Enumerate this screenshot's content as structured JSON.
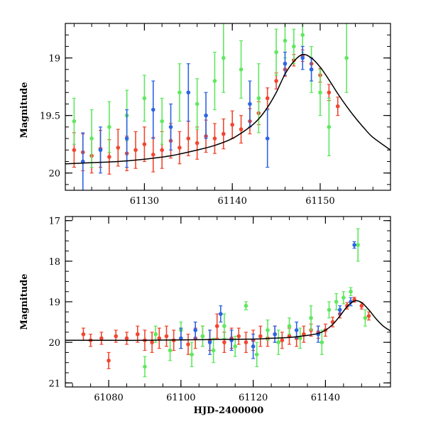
{
  "chart_data": [
    {
      "type": "scatter",
      "panel": "top",
      "xlabel": "",
      "ylabel": "Magnitude",
      "xlim": [
        61121,
        61158
      ],
      "ylim": [
        20.15,
        18.7
      ],
      "y_inverted": true,
      "xticks": [
        61130,
        61140,
        61150
      ],
      "xtick_labels": [
        "61130",
        "61140",
        "61150"
      ],
      "yticks": [
        19,
        19.5,
        20
      ],
      "ytick_labels": [
        "19",
        "19.5",
        "20"
      ],
      "x_minor_step": 2,
      "y_minor_step": 0.1,
      "model_curve": {
        "color": "#000000",
        "x": [
          61121,
          61124,
          61127,
          61130,
          61133,
          61136,
          61138,
          61140,
          61142,
          61143,
          61144,
          61145,
          61146,
          61147,
          61148,
          61149,
          61150,
          61151,
          61152,
          61153,
          61154,
          61155,
          61156,
          61158
        ],
        "y": [
          19.92,
          19.91,
          19.9,
          19.88,
          19.85,
          19.8,
          19.76,
          19.7,
          19.6,
          19.53,
          19.43,
          19.3,
          19.14,
          19.03,
          18.97,
          19.0,
          19.08,
          19.19,
          19.31,
          19.42,
          19.52,
          19.61,
          19.69,
          19.8
        ]
      },
      "series": [
        {
          "name": "red",
          "color": "#f0462f",
          "x": [
            61122,
            61123,
            61124,
            61125,
            61126,
            61127,
            61128,
            61129,
            61130,
            61131,
            61132,
            61133,
            61134,
            61135,
            61136,
            61137,
            61138,
            61139,
            61140,
            61141,
            61142,
            61143,
            61144,
            61145,
            61146,
            61147,
            61148,
            61149,
            61150,
            61151,
            61152
          ],
          "y": [
            19.8,
            19.82,
            19.85,
            19.79,
            19.86,
            19.78,
            19.83,
            19.8,
            19.75,
            19.84,
            19.8,
            19.72,
            19.78,
            19.7,
            19.74,
            19.68,
            19.7,
            19.66,
            19.58,
            19.62,
            19.55,
            19.48,
            19.35,
            19.2,
            19.1,
            19.02,
            18.98,
            19.05,
            19.15,
            19.3,
            19.42
          ],
          "err": [
            0.15,
            0.16,
            0.15,
            0.16,
            0.15,
            0.16,
            0.15,
            0.16,
            0.15,
            0.15,
            0.16,
            0.15,
            0.14,
            0.15,
            0.14,
            0.14,
            0.13,
            0.13,
            0.12,
            0.12,
            0.11,
            0.1,
            0.09,
            0.07,
            0.06,
            0.05,
            0.05,
            0.05,
            0.06,
            0.07,
            0.08
          ]
        },
        {
          "name": "green",
          "color": "#5fe85f",
          "x": [
            61122,
            61124,
            61126,
            61128,
            61130,
            61132,
            61134,
            61136,
            61138,
            61139,
            61141,
            61143,
            61145,
            61146,
            61147,
            61148,
            61149,
            61150,
            61151,
            61153
          ],
          "y": [
            19.55,
            19.7,
            19.6,
            19.5,
            19.35,
            19.55,
            19.3,
            19.4,
            19.2,
            19.0,
            19.1,
            19.35,
            18.95,
            18.85,
            18.9,
            18.8,
            19.1,
            19.3,
            19.6,
            19.0
          ],
          "err": [
            0.2,
            0.25,
            0.22,
            0.22,
            0.2,
            0.2,
            0.25,
            0.22,
            0.25,
            0.3,
            0.25,
            0.3,
            0.2,
            0.15,
            0.15,
            0.15,
            0.2,
            0.2,
            0.25,
            0.3
          ]
        },
        {
          "name": "blue",
          "color": "#2d64e6",
          "x": [
            61123,
            61125,
            61128,
            61131,
            61133,
            61135,
            61137,
            61142,
            61144,
            61146,
            61148,
            61149
          ],
          "y": [
            19.9,
            19.8,
            19.7,
            19.45,
            19.6,
            19.3,
            19.5,
            19.4,
            19.7,
            19.05,
            19.0,
            19.1
          ],
          "err": [
            0.25,
            0.2,
            0.25,
            0.25,
            0.2,
            0.25,
            0.2,
            0.2,
            0.25,
            0.1,
            0.1,
            0.1
          ]
        }
      ]
    },
    {
      "type": "scatter",
      "panel": "bottom",
      "xlabel": "HJD-2400000",
      "ylabel": "Magnitude",
      "xlim": [
        61068,
        61158
      ],
      "ylim": [
        21.1,
        16.9
      ],
      "y_inverted": true,
      "xticks": [
        61080,
        61100,
        61120,
        61140
      ],
      "xtick_labels": [
        "61080",
        "61100",
        "61120",
        "61140"
      ],
      "yticks": [
        17,
        18,
        19,
        20,
        21
      ],
      "ytick_labels": [
        "17",
        "18",
        "19",
        "20",
        "21"
      ],
      "x_minor_step": 5,
      "y_minor_step": 0.25,
      "model_curve": {
        "color": "#000000",
        "x": [
          61068,
          61080,
          61090,
          61100,
          61110,
          61120,
          61125,
          61130,
          61135,
          61138,
          61140,
          61142,
          61144,
          61146,
          61148,
          61150,
          61152,
          61154,
          61156,
          61158
        ],
        "y": [
          19.95,
          19.95,
          19.95,
          19.94,
          19.93,
          19.92,
          19.9,
          19.88,
          19.83,
          19.78,
          19.7,
          19.56,
          19.35,
          19.12,
          18.98,
          19.02,
          19.2,
          19.42,
          19.6,
          19.72
        ]
      },
      "series": [
        {
          "name": "red",
          "color": "#f0462f",
          "x": [
            61073,
            61075,
            61078,
            61080,
            61082,
            61085,
            61088,
            61090,
            61092,
            61094,
            61096,
            61098,
            61100,
            61102,
            61104,
            61106,
            61108,
            61110,
            61112,
            61114,
            61116,
            61118,
            61120,
            61122,
            61124,
            61126,
            61128,
            61130,
            61132,
            61134,
            61136,
            61138,
            61140,
            61142,
            61144,
            61146,
            61148,
            61150,
            61152
          ],
          "y": [
            19.8,
            19.95,
            19.9,
            20.45,
            19.85,
            19.9,
            19.8,
            19.95,
            20.0,
            19.9,
            19.85,
            19.95,
            19.9,
            20.05,
            19.9,
            19.85,
            19.95,
            19.6,
            20.0,
            19.9,
            19.85,
            20.0,
            19.95,
            19.85,
            19.9,
            19.8,
            19.95,
            19.85,
            19.9,
            19.8,
            19.7,
            19.75,
            19.7,
            19.5,
            19.3,
            19.1,
            18.95,
            19.1,
            19.35
          ],
          "err": [
            0.15,
            0.15,
            0.15,
            0.2,
            0.15,
            0.15,
            0.2,
            0.25,
            0.25,
            0.25,
            0.25,
            0.25,
            0.25,
            0.25,
            0.25,
            0.25,
            0.25,
            0.3,
            0.25,
            0.25,
            0.2,
            0.25,
            0.25,
            0.25,
            0.2,
            0.2,
            0.2,
            0.2,
            0.2,
            0.2,
            0.15,
            0.15,
            0.15,
            0.12,
            0.1,
            0.08,
            0.06,
            0.08,
            0.1
          ]
        },
        {
          "name": "green",
          "color": "#5fe85f",
          "x": [
            61090,
            61093,
            61097,
            61100,
            61103,
            61106,
            61109,
            61112,
            61115,
            61118,
            61121,
            61124,
            61127,
            61130,
            61133,
            61136,
            61139,
            61141,
            61143,
            61145,
            61147,
            61149,
            61151
          ],
          "y": [
            20.6,
            19.8,
            20.2,
            19.7,
            20.3,
            19.85,
            20.2,
            19.6,
            20.1,
            19.1,
            20.3,
            19.7,
            20.0,
            19.6,
            19.9,
            19.4,
            20.0,
            19.2,
            19.0,
            18.9,
            18.75,
            17.6,
            19.4
          ],
          "err": [
            0.25,
            0.2,
            0.25,
            0.2,
            0.3,
            0.25,
            0.3,
            0.3,
            0.25,
            0.1,
            0.3,
            0.25,
            0.3,
            0.2,
            0.25,
            0.3,
            0.3,
            0.2,
            0.2,
            0.15,
            0.1,
            0.4,
            0.2
          ]
        },
        {
          "name": "blue",
          "color": "#2d64e6",
          "x": [
            61100,
            61104,
            61108,
            61111,
            61114,
            61120,
            61126,
            61132,
            61138,
            61144,
            61147,
            61148
          ],
          "y": [
            19.9,
            19.7,
            20.0,
            19.3,
            19.95,
            20.1,
            19.8,
            19.7,
            19.8,
            19.2,
            19.0,
            17.6
          ],
          "err": [
            0.25,
            0.2,
            0.3,
            0.2,
            0.25,
            0.3,
            0.2,
            0.2,
            0.2,
            0.1,
            0.1,
            0.08
          ]
        }
      ]
    }
  ]
}
